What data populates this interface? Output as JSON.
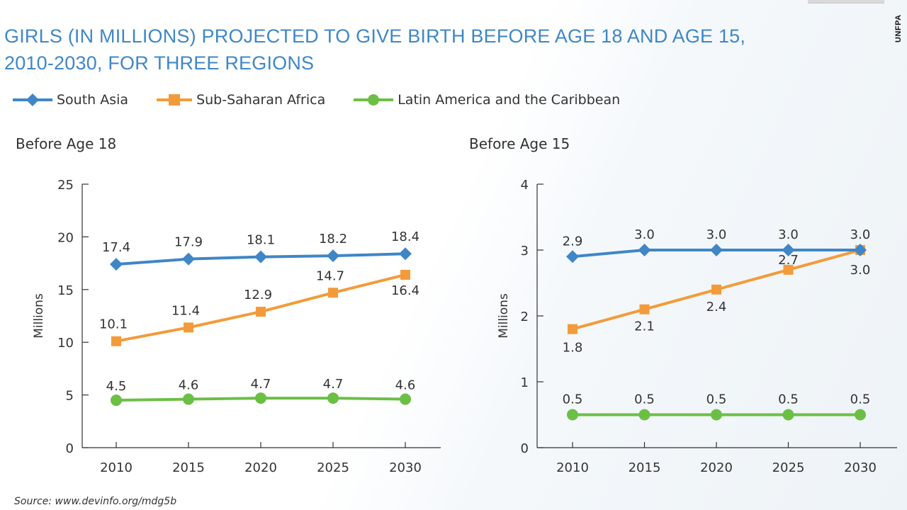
{
  "header": {
    "title_line1": "GIRLS (IN MILLIONS) PROJECTED TO GIVE BIRTH BEFORE AGE 18 AND AGE 15,",
    "title_line2": "2010-2030, FOR THREE REGIONS",
    "brand": "UNFPA"
  },
  "legend": [
    {
      "label": "South Asia",
      "marker": "diamond",
      "color": "#3f86c7"
    },
    {
      "label": "Sub-Saharan Africa",
      "marker": "square",
      "color": "#f39b3a"
    },
    {
      "label": "Latin America and the Caribbean",
      "marker": "circle",
      "color": "#6cbf45"
    }
  ],
  "source": "Source: www.devinfo.org/mdg5b",
  "chart_data": [
    {
      "type": "line",
      "title": "Before Age 18",
      "ylabel": "Millions",
      "xlabel": "",
      "x": [
        "2010",
        "2015",
        "2020",
        "2025",
        "2030"
      ],
      "ylim": [
        0,
        25
      ],
      "yticks": [
        "0",
        "5",
        "10",
        "15",
        "20",
        "25"
      ],
      "series": [
        {
          "name": "South Asia",
          "values": [
            17.4,
            17.9,
            18.1,
            18.2,
            18.4
          ],
          "labels": [
            "17.4",
            "17.9",
            "18.1",
            "18.2",
            "18.4"
          ]
        },
        {
          "name": "Sub-Saharan Africa",
          "values": [
            10.1,
            11.4,
            12.9,
            14.7,
            16.4
          ],
          "labels": [
            "10.1",
            "11.4",
            "12.9",
            "14.7",
            "16.4"
          ]
        },
        {
          "name": "Latin America and the Caribbean",
          "values": [
            4.5,
            4.6,
            4.7,
            4.7,
            4.6
          ],
          "labels": [
            "4.5",
            "4.6",
            "4.7",
            "4.7",
            "4.6"
          ]
        }
      ]
    },
    {
      "type": "line",
      "title": "Before Age 15",
      "ylabel": "Millions",
      "xlabel": "",
      "x": [
        "2010",
        "2015",
        "2020",
        "2025",
        "2030"
      ],
      "ylim": [
        0,
        4
      ],
      "yticks": [
        "0",
        "1",
        "2",
        "3",
        "4"
      ],
      "series": [
        {
          "name": "South Asia",
          "values": [
            2.9,
            3.0,
            3.0,
            3.0,
            3.0
          ],
          "labels": [
            "2.9",
            "3.0",
            "3.0",
            "3.0",
            "3.0"
          ]
        },
        {
          "name": "Sub-Saharan Africa",
          "values": [
            1.8,
            2.1,
            2.4,
            2.7,
            3.0
          ],
          "labels": [
            "1.8",
            "2.1",
            "2.4",
            "2.7",
            "3.0"
          ]
        },
        {
          "name": "Latin America and the Caribbean",
          "values": [
            0.5,
            0.5,
            0.5,
            0.5,
            0.5
          ],
          "labels": [
            "0.5",
            "0.5",
            "0.5",
            "0.5",
            "0.5"
          ]
        }
      ]
    }
  ]
}
